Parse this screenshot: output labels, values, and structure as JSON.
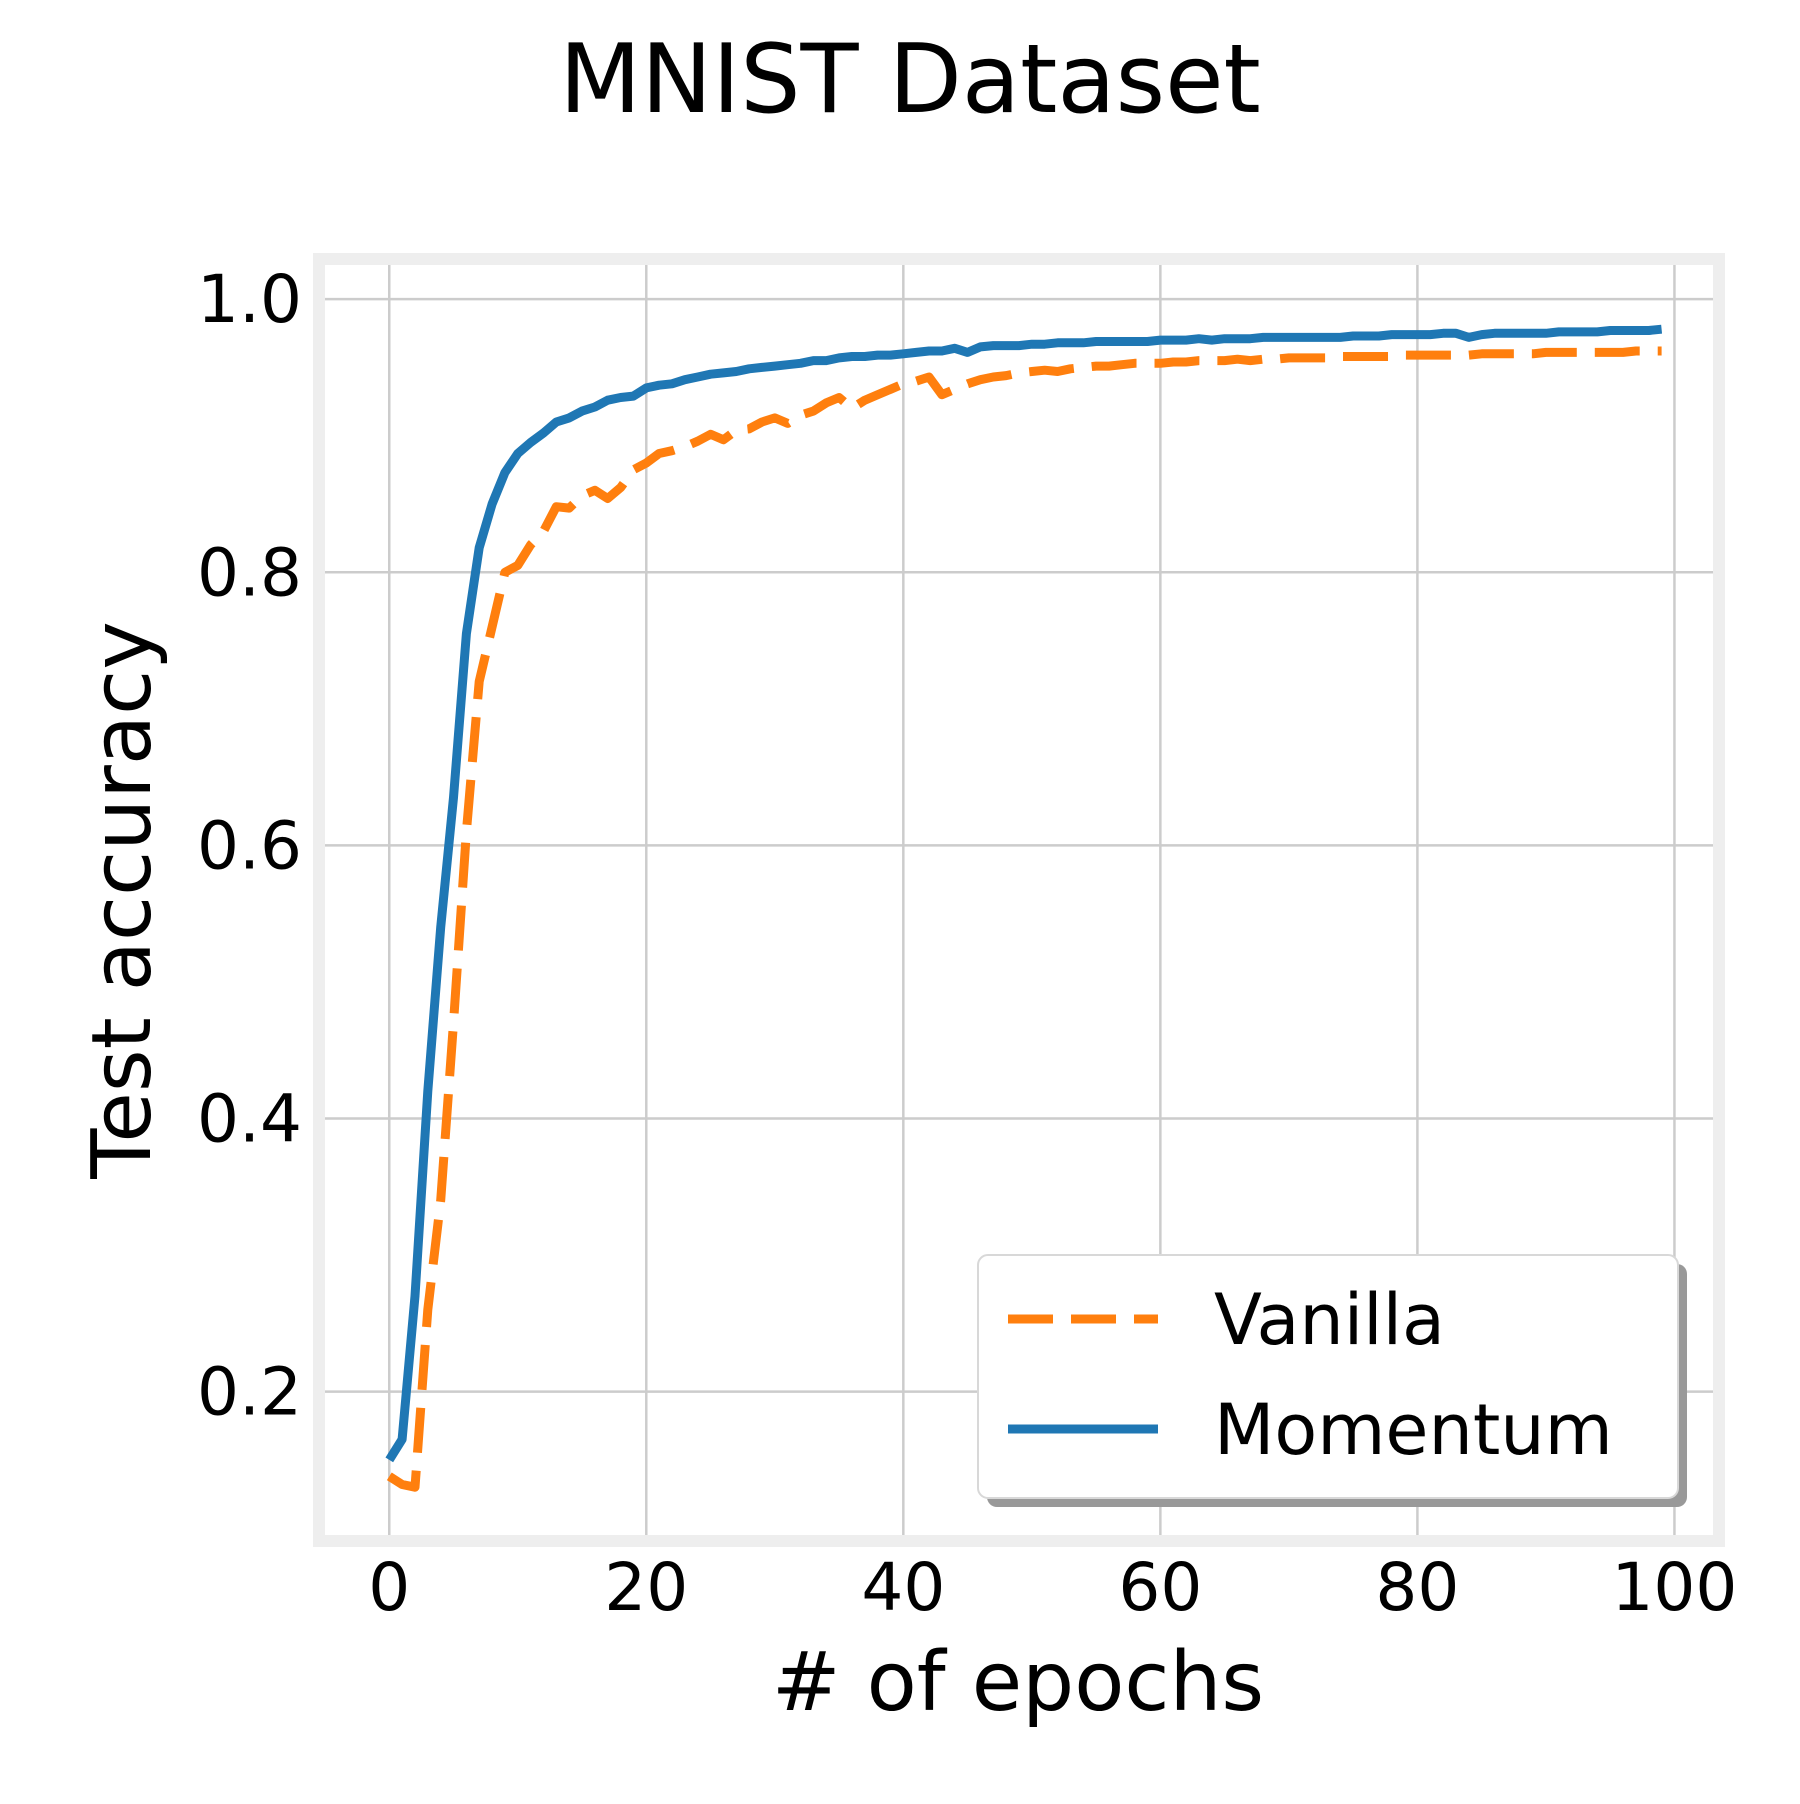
{
  "chart_data": {
    "type": "line",
    "title": "MNIST Dataset",
    "xlabel": "# of epochs",
    "ylabel": "Test accuracy",
    "xlim": [
      -5,
      103
    ],
    "ylim": [
      0.095,
      1.025
    ],
    "xticks": [
      0,
      20,
      40,
      60,
      80,
      100
    ],
    "yticks": [
      0.2,
      0.4,
      0.6,
      0.8,
      1.0
    ],
    "xtick_labels": [
      "0",
      "20",
      "40",
      "60",
      "80",
      "100"
    ],
    "ytick_labels": [
      "0.2",
      "0.4",
      "0.6",
      "0.8",
      "1.0"
    ],
    "grid": true,
    "legend_position": "lower-right",
    "x": [
      0,
      1,
      2,
      3,
      4,
      5,
      6,
      7,
      8,
      9,
      10,
      11,
      12,
      13,
      14,
      15,
      16,
      17,
      18,
      19,
      20,
      21,
      22,
      23,
      24,
      25,
      26,
      27,
      28,
      29,
      30,
      31,
      32,
      33,
      34,
      35,
      36,
      37,
      38,
      39,
      40,
      41,
      42,
      43,
      44,
      45,
      46,
      47,
      48,
      49,
      50,
      51,
      52,
      53,
      54,
      55,
      56,
      57,
      58,
      59,
      60,
      61,
      62,
      63,
      64,
      65,
      66,
      67,
      68,
      69,
      70,
      71,
      72,
      73,
      74,
      75,
      76,
      77,
      78,
      79,
      80,
      81,
      82,
      83,
      84,
      85,
      86,
      87,
      88,
      89,
      90,
      91,
      92,
      93,
      94,
      95,
      96,
      97,
      98,
      99
    ],
    "series": [
      {
        "name": "Vanilla",
        "color": "#ff7f0e",
        "style": "dashed",
        "values": [
          0.138,
          0.132,
          0.13,
          0.26,
          0.34,
          0.47,
          0.61,
          0.72,
          0.76,
          0.8,
          0.805,
          0.82,
          0.83,
          0.848,
          0.847,
          0.856,
          0.86,
          0.854,
          0.862,
          0.875,
          0.88,
          0.887,
          0.889,
          0.892,
          0.896,
          0.901,
          0.897,
          0.904,
          0.905,
          0.91,
          0.913,
          0.909,
          0.915,
          0.918,
          0.924,
          0.928,
          0.92,
          0.926,
          0.93,
          0.934,
          0.938,
          0.94,
          0.943,
          0.93,
          0.934,
          0.938,
          0.941,
          0.943,
          0.944,
          0.946,
          0.947,
          0.948,
          0.947,
          0.949,
          0.95,
          0.951,
          0.951,
          0.952,
          0.953,
          0.953,
          0.953,
          0.954,
          0.954,
          0.955,
          0.955,
          0.955,
          0.956,
          0.955,
          0.956,
          0.956,
          0.957,
          0.957,
          0.957,
          0.957,
          0.958,
          0.958,
          0.958,
          0.958,
          0.958,
          0.959,
          0.959,
          0.959,
          0.959,
          0.959,
          0.959,
          0.96,
          0.96,
          0.96,
          0.96,
          0.96,
          0.961,
          0.961,
          0.961,
          0.961,
          0.961,
          0.961,
          0.961,
          0.962,
          0.962,
          0.962
        ]
      },
      {
        "name": "Momentum",
        "color": "#1f77b4",
        "style": "solid",
        "values": [
          0.15,
          0.165,
          0.27,
          0.42,
          0.54,
          0.635,
          0.755,
          0.818,
          0.85,
          0.873,
          0.887,
          0.895,
          0.902,
          0.91,
          0.913,
          0.918,
          0.921,
          0.926,
          0.928,
          0.929,
          0.935,
          0.937,
          0.938,
          0.941,
          0.943,
          0.945,
          0.946,
          0.947,
          0.949,
          0.95,
          0.951,
          0.952,
          0.953,
          0.955,
          0.955,
          0.957,
          0.958,
          0.958,
          0.959,
          0.959,
          0.96,
          0.961,
          0.962,
          0.962,
          0.964,
          0.961,
          0.965,
          0.966,
          0.966,
          0.966,
          0.967,
          0.967,
          0.968,
          0.968,
          0.968,
          0.969,
          0.969,
          0.969,
          0.969,
          0.969,
          0.97,
          0.97,
          0.97,
          0.971,
          0.97,
          0.971,
          0.971,
          0.971,
          0.972,
          0.972,
          0.972,
          0.972,
          0.972,
          0.972,
          0.972,
          0.973,
          0.973,
          0.973,
          0.974,
          0.974,
          0.974,
          0.974,
          0.975,
          0.975,
          0.972,
          0.974,
          0.975,
          0.975,
          0.975,
          0.975,
          0.975,
          0.976,
          0.976,
          0.976,
          0.976,
          0.977,
          0.977,
          0.977,
          0.977,
          0.978
        ]
      }
    ]
  }
}
